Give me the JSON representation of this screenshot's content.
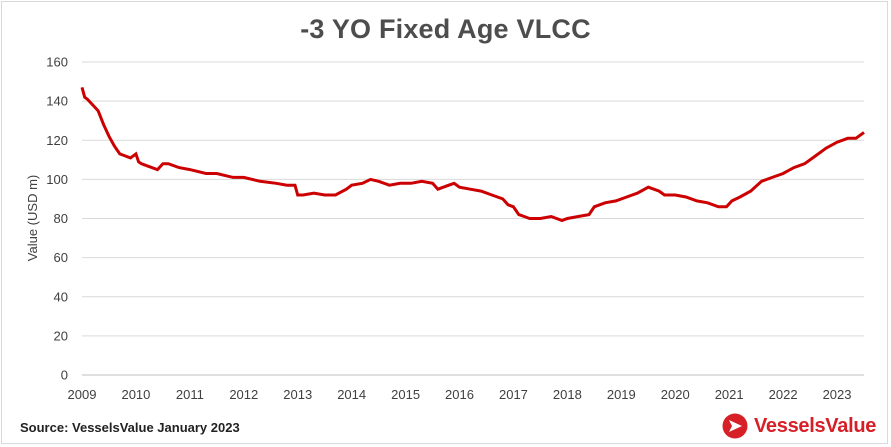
{
  "colors": {
    "line": "#cc0000",
    "grid": "#d9d9d9",
    "brand": "#d61f26"
  },
  "footer": {
    "source": "Source: VesselsValue January 2023",
    "brand_name": "VesselsValue",
    "logo_icon": "vesselsvalue-logo-icon"
  },
  "chart_data": {
    "type": "line",
    "title": "-3 YO Fixed Age VLCC",
    "xlabel": "",
    "ylabel": "Value (USD m)",
    "xlim": [
      2009,
      2023.5
    ],
    "ylim": [
      0,
      160
    ],
    "yticks": [
      0,
      20,
      40,
      60,
      80,
      100,
      120,
      140,
      160
    ],
    "xticks": [
      2009,
      2010,
      2011,
      2012,
      2013,
      2014,
      2015,
      2016,
      2017,
      2018,
      2019,
      2020,
      2021,
      2022,
      2023
    ],
    "grid": "horizontal",
    "series": [
      {
        "x": [
          2009.0,
          2009.05,
          2009.1,
          2009.2,
          2009.3,
          2009.4,
          2009.5,
          2009.6,
          2009.7,
          2009.8,
          2009.9,
          2010.0,
          2010.05,
          2010.1,
          2010.2,
          2010.4,
          2010.5,
          2010.6,
          2010.8,
          2011.0,
          2011.3,
          2011.5,
          2011.8,
          2012.0,
          2012.3,
          2012.6,
          2012.8,
          2012.95,
          2013.0,
          2013.1,
          2013.3,
          2013.5,
          2013.7,
          2013.9,
          2014.0,
          2014.2,
          2014.35,
          2014.5,
          2014.7,
          2014.9,
          2015.1,
          2015.3,
          2015.5,
          2015.6,
          2015.8,
          2015.9,
          2016.0,
          2016.2,
          2016.4,
          2016.6,
          2016.8,
          2016.9,
          2017.0,
          2017.1,
          2017.2,
          2017.3,
          2017.5,
          2017.7,
          2017.9,
          2018.0,
          2018.2,
          2018.4,
          2018.5,
          2018.7,
          2018.9,
          2019.1,
          2019.3,
          2019.5,
          2019.7,
          2019.8,
          2020.0,
          2020.2,
          2020.4,
          2020.6,
          2020.8,
          2020.95,
          2021.05,
          2021.2,
          2021.4,
          2021.6,
          2021.8,
          2022.0,
          2022.2,
          2022.4,
          2022.6,
          2022.8,
          2023.0,
          2023.2,
          2023.35,
          2023.5
        ],
        "y": [
          147,
          142,
          141,
          138,
          135,
          128,
          122,
          117,
          113,
          112,
          111,
          113,
          109,
          108,
          107,
          105,
          108,
          108,
          106,
          105,
          103,
          103,
          101,
          101,
          99,
          98,
          97,
          97,
          92,
          92,
          93,
          92,
          92,
          95,
          97,
          98,
          100,
          99,
          97,
          98,
          98,
          99,
          98,
          95,
          97,
          98,
          96,
          95,
          94,
          92,
          90,
          87,
          86,
          82,
          81,
          80,
          80,
          81,
          79,
          80,
          81,
          82,
          86,
          88,
          89,
          91,
          93,
          96,
          94,
          92,
          92,
          91,
          89,
          88,
          86,
          86,
          89,
          91,
          94,
          99,
          101,
          103,
          106,
          108,
          112,
          116,
          119,
          121,
          121,
          124
        ]
      }
    ]
  }
}
